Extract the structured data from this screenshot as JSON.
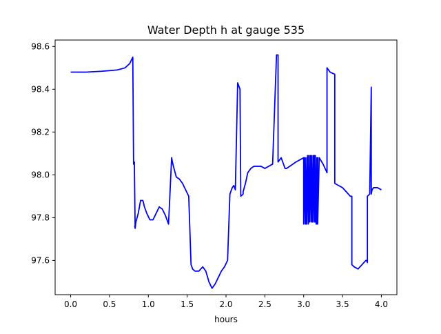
{
  "chart_data": {
    "type": "line",
    "title": "Water Depth h at gauge 535",
    "xlabel": "hours",
    "ylabel": "",
    "xlim": [
      -0.2,
      4.2
    ],
    "ylim": [
      97.44,
      98.63
    ],
    "xticks": [
      0.0,
      0.5,
      1.0,
      1.5,
      2.0,
      2.5,
      3.0,
      3.5,
      4.0
    ],
    "xtick_labels": [
      "0.0",
      "0.5",
      "1.0",
      "1.5",
      "2.0",
      "2.5",
      "3.0",
      "3.5",
      "4.0"
    ],
    "yticks": [
      97.6,
      97.8,
      98.0,
      98.2,
      98.4,
      98.6
    ],
    "ytick_labels": [
      "97.6",
      "97.8",
      "98.0",
      "98.2",
      "98.4",
      "98.6"
    ],
    "grid": false,
    "legend": false,
    "series": [
      {
        "color": "#0000ff",
        "x": [
          0.0,
          0.2,
          0.4,
          0.6,
          0.7,
          0.76,
          0.8,
          0.81,
          0.82,
          0.83,
          0.83,
          0.825,
          0.83,
          0.84,
          0.87,
          0.9,
          0.93,
          0.95,
          0.98,
          1.02,
          1.06,
          1.1,
          1.14,
          1.18,
          1.22,
          1.26,
          1.3,
          1.31,
          1.31,
          1.33,
          1.36,
          1.4,
          1.44,
          1.48,
          1.52,
          1.55,
          1.56,
          1.57,
          1.6,
          1.65,
          1.7,
          1.74,
          1.78,
          1.82,
          1.86,
          1.9,
          1.94,
          1.98,
          2.02,
          2.05,
          2.08,
          2.1,
          2.1,
          2.12,
          2.15,
          2.18,
          2.19,
          2.19,
          2.22,
          2.22,
          2.25,
          2.28,
          2.32,
          2.36,
          2.4,
          2.45,
          2.5,
          2.55,
          2.6,
          2.65,
          2.67,
          2.67,
          2.71,
          2.71,
          2.73,
          2.76,
          2.78,
          2.82,
          2.86,
          2.9,
          2.95,
          3.0,
          3.0,
          3.01,
          3.02,
          3.02,
          3.03,
          3.04,
          3.04,
          3.05,
          3.06,
          3.06,
          3.07,
          3.08,
          3.08,
          3.09,
          3.1,
          3.1,
          3.11,
          3.12,
          3.12,
          3.13,
          3.14,
          3.14,
          3.15,
          3.15,
          3.16,
          3.17,
          3.17,
          3.18,
          3.18,
          3.2,
          3.25,
          3.3,
          3.3,
          3.34,
          3.4,
          3.4,
          3.45,
          3.5,
          3.55,
          3.6,
          3.62,
          3.62,
          3.65,
          3.7,
          3.75,
          3.8,
          3.81,
          3.82,
          3.82,
          3.85,
          3.87,
          3.87,
          3.88,
          3.9,
          3.95,
          4.0
        ],
        "y": [
          98.48,
          98.48,
          98.484,
          98.49,
          98.5,
          98.52,
          98.55,
          98.05,
          98.06,
          97.75,
          97.75,
          97.76,
          97.75,
          97.78,
          97.82,
          97.88,
          97.88,
          97.85,
          97.82,
          97.79,
          97.79,
          97.82,
          97.85,
          97.84,
          97.81,
          97.77,
          98.08,
          98.06,
          98.06,
          98.03,
          97.99,
          97.98,
          97.96,
          97.93,
          97.9,
          97.58,
          97.57,
          97.56,
          97.55,
          97.55,
          97.57,
          97.55,
          97.5,
          97.47,
          97.49,
          97.52,
          97.55,
          97.57,
          97.6,
          97.91,
          97.94,
          97.95,
          97.95,
          97.93,
          98.43,
          98.4,
          97.91,
          97.9,
          97.91,
          97.92,
          97.96,
          98.01,
          98.03,
          98.04,
          98.04,
          98.04,
          98.03,
          98.04,
          98.05,
          98.56,
          98.56,
          98.06,
          98.08,
          98.08,
          98.06,
          98.03,
          98.03,
          98.04,
          98.05,
          98.06,
          98.07,
          98.08,
          97.77,
          98.08,
          97.77,
          98.08,
          97.77,
          98.08,
          97.77,
          98.09,
          97.77,
          98.09,
          97.78,
          98.09,
          97.78,
          98.09,
          97.78,
          98.09,
          97.78,
          98.09,
          97.78,
          98.09,
          97.78,
          98.09,
          97.78,
          98.09,
          97.77,
          98.08,
          97.77,
          98.08,
          97.77,
          98.08,
          98.05,
          98.01,
          98.5,
          98.48,
          98.47,
          97.96,
          97.95,
          97.94,
          97.92,
          97.9,
          97.9,
          97.58,
          97.57,
          97.56,
          97.58,
          97.6,
          97.6,
          97.59,
          97.9,
          97.91,
          98.41,
          97.91,
          97.93,
          97.94,
          97.94,
          97.93
        ]
      }
    ]
  }
}
